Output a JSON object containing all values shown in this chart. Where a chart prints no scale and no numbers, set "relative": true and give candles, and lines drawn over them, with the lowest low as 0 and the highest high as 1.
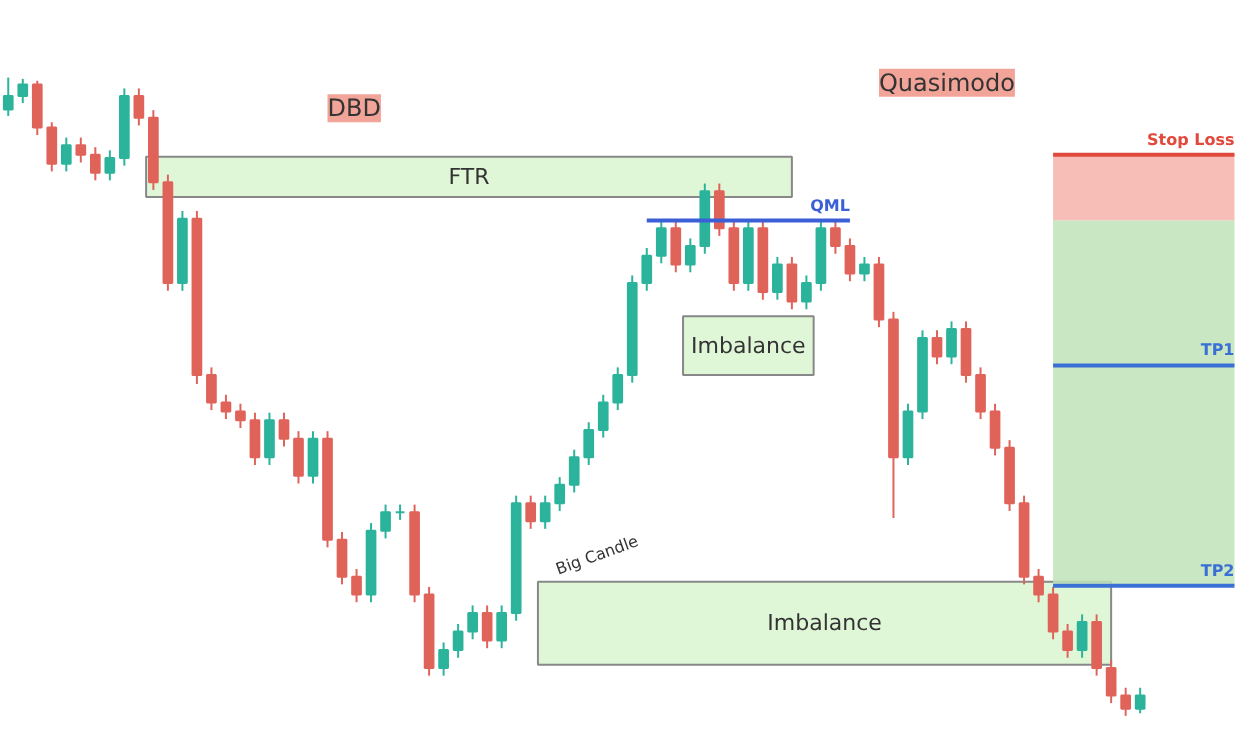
{
  "chart_data": {
    "type": "candlestick",
    "relative": true,
    "categories": [
      null,
      null,
      null,
      null,
      null,
      null,
      null,
      null,
      null,
      null,
      null,
      null,
      null,
      null,
      null,
      null,
      null,
      null,
      null,
      null,
      null,
      null,
      null,
      null,
      null,
      null,
      null,
      null,
      null,
      null,
      null,
      null,
      null,
      null,
      null,
      null,
      null,
      null,
      null,
      null,
      null,
      null,
      null,
      null,
      null,
      null,
      null,
      null,
      null,
      null,
      null,
      null,
      null,
      null,
      null,
      null,
      null,
      null,
      null,
      null,
      null,
      null,
      null,
      null,
      null,
      null,
      null,
      null,
      null,
      null,
      null,
      null,
      null,
      null,
      null,
      null,
      null,
      null,
      null
    ],
    "ohlc": [
      [
        0.95,
        1.0,
        0.94,
        0.971
      ],
      [
        0.971,
        0.998,
        0.96,
        0.989
      ],
      [
        0.989,
        0.995,
        0.91,
        0.922
      ],
      [
        0.922,
        0.93,
        0.853,
        0.865
      ],
      [
        0.865,
        0.906,
        0.853,
        0.894
      ],
      [
        0.894,
        0.906,
        0.867,
        0.879
      ],
      [
        0.879,
        0.891,
        0.839,
        0.851
      ],
      [
        0.851,
        0.886,
        0.839,
        0.874
      ],
      [
        0.874,
        0.983,
        0.862,
        0.971
      ],
      [
        0.971,
        0.983,
        0.925,
        0.937
      ],
      [
        0.937,
        0.949,
        0.824,
        0.836
      ],
      [
        0.836,
        0.848,
        0.666,
        0.678
      ],
      [
        0.678,
        0.791,
        0.666,
        0.779
      ],
      [
        0.779,
        0.791,
        0.52,
        0.534
      ],
      [
        0.534,
        0.546,
        0.479,
        0.491
      ],
      [
        0.491,
        0.503,
        0.465,
        0.477
      ],
      [
        0.477,
        0.489,
        0.451,
        0.463
      ],
      [
        0.463,
        0.475,
        0.393,
        0.405
      ],
      [
        0.405,
        0.475,
        0.393,
        0.463
      ],
      [
        0.463,
        0.475,
        0.422,
        0.434
      ],
      [
        0.434,
        0.446,
        0.364,
        0.376
      ],
      [
        0.376,
        0.446,
        0.364,
        0.434
      ],
      [
        0.434,
        0.446,
        0.264,
        0.276
      ],
      [
        0.276,
        0.288,
        0.206,
        0.218
      ],
      [
        0.218,
        0.23,
        0.178,
        0.19
      ],
      [
        0.19,
        0.302,
        0.178,
        0.29
      ],
      [
        0.29,
        0.331,
        0.278,
        0.319
      ],
      [
        0.319,
        0.331,
        0.307,
        0.319
      ],
      [
        0.319,
        0.331,
        0.178,
        0.19
      ],
      [
        0.19,
        0.202,
        0.063,
        0.075
      ],
      [
        0.075,
        0.115,
        0.063,
        0.103
      ],
      [
        0.103,
        0.144,
        0.091,
        0.132
      ],
      [
        0.132,
        0.173,
        0.12,
        0.161
      ],
      [
        0.161,
        0.173,
        0.106,
        0.118
      ],
      [
        0.118,
        0.173,
        0.106,
        0.161
      ],
      [
        0.161,
        0.345,
        0.149,
        0.333
      ],
      [
        0.333,
        0.345,
        0.293,
        0.305
      ],
      [
        0.305,
        0.345,
        0.293,
        0.333
      ],
      [
        0.333,
        0.374,
        0.321,
        0.362
      ],
      [
        0.362,
        0.417,
        0.35,
        0.405
      ],
      [
        0.405,
        0.46,
        0.393,
        0.448
      ],
      [
        0.448,
        0.503,
        0.436,
        0.491
      ],
      [
        0.491,
        0.546,
        0.479,
        0.534
      ],
      [
        0.534,
        0.69,
        0.522,
        0.678
      ],
      [
        0.678,
        0.733,
        0.666,
        0.721
      ],
      [
        0.721,
        0.776,
        0.709,
        0.764
      ],
      [
        0.764,
        0.776,
        0.695,
        0.707
      ],
      [
        0.707,
        0.748,
        0.695,
        0.736
      ],
      [
        0.736,
        0.834,
        0.724,
        0.822
      ],
      [
        0.822,
        0.834,
        0.752,
        0.764
      ],
      [
        0.764,
        0.776,
        0.666,
        0.678
      ],
      [
        0.678,
        0.776,
        0.666,
        0.764
      ],
      [
        0.764,
        0.776,
        0.652,
        0.664
      ],
      [
        0.664,
        0.719,
        0.652,
        0.707
      ],
      [
        0.707,
        0.719,
        0.637,
        0.649
      ],
      [
        0.649,
        0.69,
        0.637,
        0.678
      ],
      [
        0.678,
        0.776,
        0.666,
        0.764
      ],
      [
        0.764,
        0.776,
        0.724,
        0.736
      ],
      [
        0.736,
        0.748,
        0.681,
        0.693
      ],
      [
        0.693,
        0.719,
        0.681,
        0.707
      ],
      [
        0.707,
        0.719,
        0.609,
        0.621
      ],
      [
        0.621,
        0.633,
        0.31,
        0.405
      ],
      [
        0.405,
        0.489,
        0.393,
        0.477
      ],
      [
        0.477,
        0.604,
        0.465,
        0.592
      ],
      [
        0.592,
        0.604,
        0.551,
        0.563
      ],
      [
        0.563,
        0.618,
        0.551,
        0.606
      ],
      [
        0.606,
        0.618,
        0.522,
        0.534
      ],
      [
        0.534,
        0.546,
        0.465,
        0.477
      ],
      [
        0.477,
        0.489,
        0.408,
        0.42
      ],
      [
        0.42,
        0.432,
        0.321,
        0.333
      ],
      [
        0.333,
        0.345,
        0.206,
        0.218
      ],
      [
        0.218,
        0.23,
        0.178,
        0.19
      ],
      [
        0.19,
        0.202,
        0.12,
        0.132
      ],
      [
        0.132,
        0.144,
        0.091,
        0.103
      ],
      [
        0.103,
        0.159,
        0.091,
        0.147
      ],
      [
        0.147,
        0.159,
        0.063,
        0.075
      ],
      [
        0.075,
        0.087,
        0.02,
        0.032
      ],
      [
        0.032,
        0.044,
        0.0,
        0.011
      ],
      [
        0.011,
        0.044,
        0.004,
        0.032
      ]
    ],
    "bands": [
      {
        "axis": "y",
        "from": 0.813,
        "to": 0.876,
        "label": "FTR",
        "color": "#d9f5d0"
      },
      {
        "axis": "y",
        "from": 0.534,
        "to": 0.626,
        "label": "Imbalance",
        "color": "#d9f5d0"
      },
      {
        "axis": "y",
        "from": 0.08,
        "to": 0.21,
        "label": "Imbalance",
        "color": "#d9f5d0"
      },
      {
        "axis": "y",
        "from": 0.776,
        "to": 0.879,
        "color": "#f5b3aa"
      },
      {
        "axis": "y",
        "from": 0.204,
        "to": 0.776,
        "color": "#bfe3b8"
      }
    ],
    "ref_lines": [
      {
        "axis": "y",
        "value": 0.879,
        "label": "Stop Loss",
        "color": "#e0493c"
      },
      {
        "axis": "y",
        "value": 0.776,
        "label": "QML",
        "color": "#3a5fd6"
      },
      {
        "axis": "y",
        "value": 0.549,
        "label": "TP1",
        "color": "#3a6fd6"
      },
      {
        "axis": "y",
        "value": 0.204,
        "label": "TP2",
        "color": "#3a6fd6"
      }
    ],
    "annotations": [
      "DBD",
      "Quasimodo",
      "Big Candle"
    ]
  }
}
